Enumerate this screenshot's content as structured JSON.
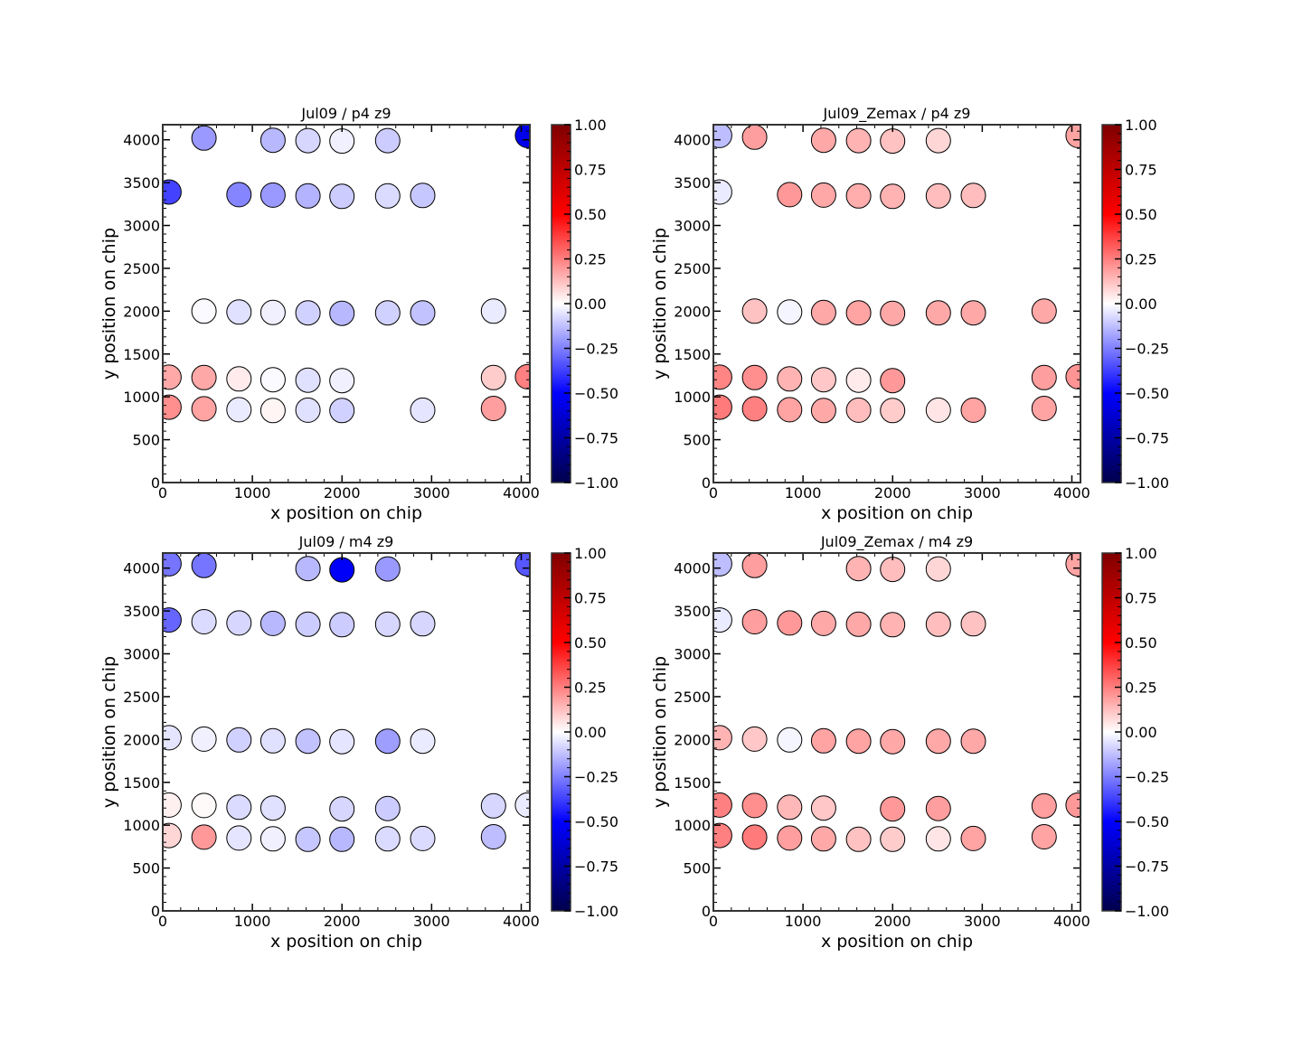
{
  "chart_data": [
    {
      "type": "scatter",
      "title": "Jul09 / p4 z9",
      "xlabel": "x position on chip",
      "ylabel": "y position on chip",
      "xlim": [
        0,
        4096
      ],
      "ylim": [
        0,
        4176
      ],
      "xticks": [
        0,
        1000,
        2000,
        3000,
        4000
      ],
      "yticks": [
        0,
        500,
        1000,
        1500,
        2000,
        2500,
        3000,
        3500,
        4000
      ],
      "colorbar": {
        "cmap": "seismic",
        "vmin": -1.0,
        "vmax": 1.0,
        "ticks": [
          "1.00",
          "0.75",
          "0.50",
          "0.25",
          "0.00",
          "−0.25",
          "−0.50",
          "−0.75",
          "−1.00"
        ]
      },
      "points": [
        {
          "x": 460,
          "y": 4020,
          "v": -0.2
        },
        {
          "x": 1230,
          "y": 3995,
          "v": -0.14
        },
        {
          "x": 1620,
          "y": 3990,
          "v": -0.08
        },
        {
          "x": 2000,
          "y": 3985,
          "v": -0.03
        },
        {
          "x": 2510,
          "y": 3990,
          "v": -0.1
        },
        {
          "x": 4070,
          "y": 4050,
          "v": -0.56
        },
        {
          "x": 70,
          "y": 3390,
          "v": -0.37
        },
        {
          "x": 850,
          "y": 3360,
          "v": -0.24
        },
        {
          "x": 1230,
          "y": 3355,
          "v": -0.2
        },
        {
          "x": 1620,
          "y": 3345,
          "v": -0.15
        },
        {
          "x": 2000,
          "y": 3340,
          "v": -0.1
        },
        {
          "x": 2510,
          "y": 3345,
          "v": -0.07
        },
        {
          "x": 2900,
          "y": 3350,
          "v": -0.11
        },
        {
          "x": 460,
          "y": 2000,
          "v": -0.01
        },
        {
          "x": 850,
          "y": 1990,
          "v": -0.06
        },
        {
          "x": 1230,
          "y": 1985,
          "v": -0.03
        },
        {
          "x": 1620,
          "y": 1980,
          "v": -0.09
        },
        {
          "x": 2000,
          "y": 1975,
          "v": -0.14
        },
        {
          "x": 2510,
          "y": 1980,
          "v": -0.09
        },
        {
          "x": 2900,
          "y": 1980,
          "v": -0.12
        },
        {
          "x": 3690,
          "y": 2000,
          "v": -0.04
        },
        {
          "x": 70,
          "y": 1230,
          "v": 0.17
        },
        {
          "x": 460,
          "y": 1225,
          "v": 0.17
        },
        {
          "x": 850,
          "y": 1210,
          "v": 0.04
        },
        {
          "x": 1230,
          "y": 1200,
          "v": -0.01
        },
        {
          "x": 1620,
          "y": 1195,
          "v": -0.06
        },
        {
          "x": 2000,
          "y": 1190,
          "v": -0.03
        },
        {
          "x": 3690,
          "y": 1225,
          "v": 0.1
        },
        {
          "x": 4070,
          "y": 1235,
          "v": 0.25
        },
        {
          "x": 70,
          "y": 880,
          "v": 0.22
        },
        {
          "x": 460,
          "y": 860,
          "v": 0.18
        },
        {
          "x": 850,
          "y": 850,
          "v": -0.04
        },
        {
          "x": 1230,
          "y": 840,
          "v": 0.02
        },
        {
          "x": 1620,
          "y": 845,
          "v": -0.06
        },
        {
          "x": 2000,
          "y": 840,
          "v": -0.09
        },
        {
          "x": 2900,
          "y": 845,
          "v": -0.05
        },
        {
          "x": 3690,
          "y": 865,
          "v": 0.19
        }
      ]
    },
    {
      "type": "scatter",
      "title": "Jul09_Zemax / p4 z9",
      "xlabel": "x position on chip",
      "ylabel": "y position on chip",
      "xlim": [
        0,
        4096
      ],
      "ylim": [
        0,
        4176
      ],
      "xticks": [
        0,
        1000,
        2000,
        3000,
        4000
      ],
      "yticks": [
        0,
        500,
        1000,
        1500,
        2000,
        2500,
        3000,
        3500,
        4000
      ],
      "colorbar": {
        "cmap": "seismic",
        "vmin": -1.0,
        "vmax": 1.0,
        "ticks": [
          "1.00",
          "0.75",
          "0.50",
          "0.25",
          "0.00",
          "−0.25",
          "−0.50",
          "−0.75",
          "−1.00"
        ]
      },
      "points": [
        {
          "x": 70,
          "y": 4050,
          "v": -0.13
        },
        {
          "x": 460,
          "y": 4030,
          "v": 0.19
        },
        {
          "x": 1230,
          "y": 3995,
          "v": 0.17
        },
        {
          "x": 1620,
          "y": 3990,
          "v": 0.15
        },
        {
          "x": 2000,
          "y": 3985,
          "v": 0.12
        },
        {
          "x": 2510,
          "y": 3990,
          "v": 0.08
        },
        {
          "x": 4070,
          "y": 4050,
          "v": 0.18
        },
        {
          "x": 70,
          "y": 3390,
          "v": -0.04
        },
        {
          "x": 850,
          "y": 3360,
          "v": 0.2
        },
        {
          "x": 1230,
          "y": 3355,
          "v": 0.17
        },
        {
          "x": 1620,
          "y": 3345,
          "v": 0.16
        },
        {
          "x": 2000,
          "y": 3340,
          "v": 0.15
        },
        {
          "x": 2510,
          "y": 3345,
          "v": 0.13
        },
        {
          "x": 2900,
          "y": 3350,
          "v": 0.13
        },
        {
          "x": 460,
          "y": 2000,
          "v": 0.12
        },
        {
          "x": 850,
          "y": 1990,
          "v": -0.02
        },
        {
          "x": 1230,
          "y": 1985,
          "v": 0.17
        },
        {
          "x": 1620,
          "y": 1980,
          "v": 0.18
        },
        {
          "x": 2000,
          "y": 1975,
          "v": 0.17
        },
        {
          "x": 2510,
          "y": 1980,
          "v": 0.17
        },
        {
          "x": 2900,
          "y": 1980,
          "v": 0.17
        },
        {
          "x": 3690,
          "y": 2000,
          "v": 0.17
        },
        {
          "x": 70,
          "y": 1230,
          "v": 0.24
        },
        {
          "x": 460,
          "y": 1225,
          "v": 0.22
        },
        {
          "x": 850,
          "y": 1210,
          "v": 0.15
        },
        {
          "x": 1230,
          "y": 1200,
          "v": 0.11
        },
        {
          "x": 1620,
          "y": 1195,
          "v": 0.04
        },
        {
          "x": 2000,
          "y": 1190,
          "v": 0.2
        },
        {
          "x": 3690,
          "y": 1225,
          "v": 0.19
        },
        {
          "x": 4070,
          "y": 1235,
          "v": 0.21
        },
        {
          "x": 70,
          "y": 880,
          "v": 0.26
        },
        {
          "x": 460,
          "y": 860,
          "v": 0.25
        },
        {
          "x": 850,
          "y": 850,
          "v": 0.18
        },
        {
          "x": 1230,
          "y": 840,
          "v": 0.17
        },
        {
          "x": 1620,
          "y": 845,
          "v": 0.13
        },
        {
          "x": 2000,
          "y": 840,
          "v": 0.1
        },
        {
          "x": 2510,
          "y": 845,
          "v": 0.05
        },
        {
          "x": 2900,
          "y": 845,
          "v": 0.18
        },
        {
          "x": 3690,
          "y": 865,
          "v": 0.18
        }
      ]
    },
    {
      "type": "scatter",
      "title": "Jul09 / m4 z9",
      "xlabel": "x position on chip",
      "ylabel": "y position on chip",
      "xlim": [
        0,
        4096
      ],
      "ylim": [
        0,
        4176
      ],
      "xticks": [
        0,
        1000,
        2000,
        3000,
        4000
      ],
      "yticks": [
        0,
        500,
        1000,
        1500,
        2000,
        2500,
        3000,
        3500,
        4000
      ],
      "colorbar": {
        "cmap": "seismic",
        "vmin": -1.0,
        "vmax": 1.0,
        "ticks": [
          "1.00",
          "0.75",
          "0.50",
          "0.25",
          "0.00",
          "−0.25",
          "−0.50",
          "−0.75",
          "−1.00"
        ]
      },
      "points": [
        {
          "x": 70,
          "y": 4050,
          "v": -0.27
        },
        {
          "x": 460,
          "y": 4030,
          "v": -0.27
        },
        {
          "x": 1620,
          "y": 3995,
          "v": -0.14
        },
        {
          "x": 2000,
          "y": 3980,
          "v": -0.52
        },
        {
          "x": 2510,
          "y": 3990,
          "v": -0.2
        },
        {
          "x": 4070,
          "y": 4050,
          "v": -0.33
        },
        {
          "x": 70,
          "y": 3395,
          "v": -0.3
        },
        {
          "x": 460,
          "y": 3375,
          "v": -0.07
        },
        {
          "x": 850,
          "y": 3360,
          "v": -0.08
        },
        {
          "x": 1230,
          "y": 3355,
          "v": -0.14
        },
        {
          "x": 1620,
          "y": 3345,
          "v": -0.1
        },
        {
          "x": 2000,
          "y": 3340,
          "v": -0.1
        },
        {
          "x": 2510,
          "y": 3345,
          "v": -0.08
        },
        {
          "x": 2900,
          "y": 3350,
          "v": -0.08
        },
        {
          "x": 70,
          "y": 2020,
          "v": -0.05
        },
        {
          "x": 460,
          "y": 2005,
          "v": -0.03
        },
        {
          "x": 850,
          "y": 1995,
          "v": -0.09
        },
        {
          "x": 1230,
          "y": 1985,
          "v": -0.06
        },
        {
          "x": 1620,
          "y": 1980,
          "v": -0.12
        },
        {
          "x": 2000,
          "y": 1975,
          "v": -0.05
        },
        {
          "x": 2510,
          "y": 1980,
          "v": -0.19
        },
        {
          "x": 2900,
          "y": 1980,
          "v": -0.04
        },
        {
          "x": 70,
          "y": 1235,
          "v": 0.03
        },
        {
          "x": 460,
          "y": 1230,
          "v": 0.01
        },
        {
          "x": 850,
          "y": 1210,
          "v": -0.07
        },
        {
          "x": 1230,
          "y": 1200,
          "v": -0.06
        },
        {
          "x": 2000,
          "y": 1190,
          "v": -0.08
        },
        {
          "x": 2510,
          "y": 1195,
          "v": -0.1
        },
        {
          "x": 3690,
          "y": 1225,
          "v": -0.08
        },
        {
          "x": 4070,
          "y": 1235,
          "v": -0.04
        },
        {
          "x": 70,
          "y": 880,
          "v": 0.08
        },
        {
          "x": 460,
          "y": 860,
          "v": 0.2
        },
        {
          "x": 850,
          "y": 850,
          "v": -0.05
        },
        {
          "x": 1230,
          "y": 840,
          "v": -0.03
        },
        {
          "x": 1620,
          "y": 835,
          "v": -0.11
        },
        {
          "x": 2000,
          "y": 835,
          "v": -0.14
        },
        {
          "x": 2510,
          "y": 840,
          "v": -0.07
        },
        {
          "x": 2900,
          "y": 845,
          "v": -0.07
        },
        {
          "x": 3690,
          "y": 865,
          "v": -0.13
        }
      ]
    },
    {
      "type": "scatter",
      "title": "Jul09_Zemax / m4 z9",
      "xlabel": "x position on chip",
      "ylabel": "y position on chip",
      "xlim": [
        0,
        4096
      ],
      "ylim": [
        0,
        4176
      ],
      "xticks": [
        0,
        1000,
        2000,
        3000,
        4000
      ],
      "yticks": [
        0,
        500,
        1000,
        1500,
        2000,
        2500,
        3000,
        3500,
        4000
      ],
      "colorbar": {
        "cmap": "seismic",
        "vmin": -1.0,
        "vmax": 1.0,
        "ticks": [
          "1.00",
          "0.75",
          "0.50",
          "0.25",
          "0.00",
          "−0.25",
          "−0.50",
          "−0.75",
          "−1.00"
        ]
      },
      "points": [
        {
          "x": 70,
          "y": 4050,
          "v": -0.13
        },
        {
          "x": 460,
          "y": 4030,
          "v": 0.19
        },
        {
          "x": 1620,
          "y": 3995,
          "v": 0.15
        },
        {
          "x": 2000,
          "y": 3985,
          "v": 0.13
        },
        {
          "x": 2510,
          "y": 3990,
          "v": 0.08
        },
        {
          "x": 4070,
          "y": 4050,
          "v": 0.18
        },
        {
          "x": 70,
          "y": 3395,
          "v": -0.04
        },
        {
          "x": 460,
          "y": 3375,
          "v": 0.19
        },
        {
          "x": 850,
          "y": 3360,
          "v": 0.2
        },
        {
          "x": 1230,
          "y": 3355,
          "v": 0.17
        },
        {
          "x": 1620,
          "y": 3345,
          "v": 0.17
        },
        {
          "x": 2000,
          "y": 3340,
          "v": 0.15
        },
        {
          "x": 2510,
          "y": 3345,
          "v": 0.13
        },
        {
          "x": 2900,
          "y": 3350,
          "v": 0.12
        },
        {
          "x": 70,
          "y": 2020,
          "v": 0.15
        },
        {
          "x": 460,
          "y": 2005,
          "v": 0.11
        },
        {
          "x": 850,
          "y": 1995,
          "v": -0.02
        },
        {
          "x": 1230,
          "y": 1985,
          "v": 0.18
        },
        {
          "x": 1620,
          "y": 1980,
          "v": 0.18
        },
        {
          "x": 2000,
          "y": 1975,
          "v": 0.17
        },
        {
          "x": 2510,
          "y": 1980,
          "v": 0.17
        },
        {
          "x": 2900,
          "y": 1980,
          "v": 0.17
        },
        {
          "x": 70,
          "y": 1235,
          "v": 0.25
        },
        {
          "x": 460,
          "y": 1230,
          "v": 0.22
        },
        {
          "x": 850,
          "y": 1210,
          "v": 0.14
        },
        {
          "x": 1230,
          "y": 1200,
          "v": 0.11
        },
        {
          "x": 2000,
          "y": 1190,
          "v": 0.2
        },
        {
          "x": 2510,
          "y": 1195,
          "v": 0.19
        },
        {
          "x": 3690,
          "y": 1225,
          "v": 0.19
        },
        {
          "x": 4070,
          "y": 1235,
          "v": 0.2
        },
        {
          "x": 70,
          "y": 880,
          "v": 0.25
        },
        {
          "x": 460,
          "y": 860,
          "v": 0.26
        },
        {
          "x": 850,
          "y": 850,
          "v": 0.19
        },
        {
          "x": 1230,
          "y": 840,
          "v": 0.17
        },
        {
          "x": 1620,
          "y": 835,
          "v": 0.12
        },
        {
          "x": 2000,
          "y": 835,
          "v": 0.1
        },
        {
          "x": 2510,
          "y": 840,
          "v": 0.05
        },
        {
          "x": 2900,
          "y": 845,
          "v": 0.18
        },
        {
          "x": 3690,
          "y": 865,
          "v": 0.18
        }
      ]
    }
  ]
}
